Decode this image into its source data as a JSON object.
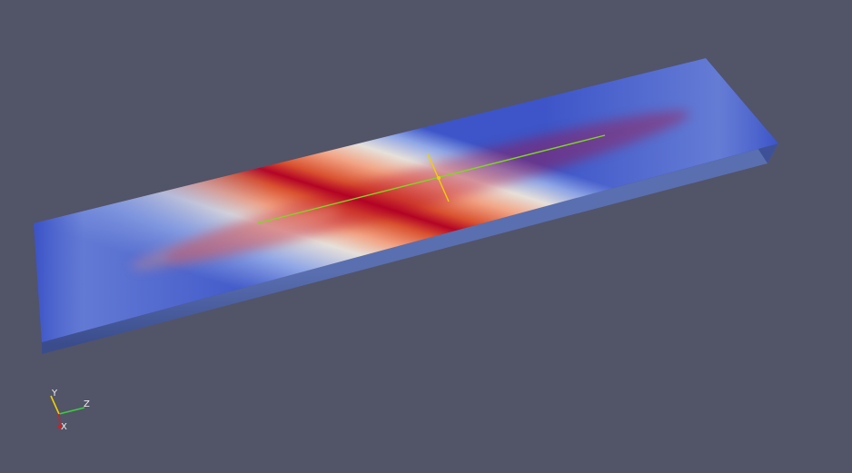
{
  "viewport": {
    "background_color": "#525468",
    "colormap": {
      "name": "Cool to Warm",
      "low_color": "#3b4cc0",
      "mid_color": "#dddddd",
      "high_color": "#b40426"
    }
  },
  "slab": {
    "top_colors": [
      "#3d55c8",
      "#8fa6e6",
      "#e6e0da",
      "#f2a485",
      "#d9512f",
      "#b40426"
    ],
    "front_face_color": "#4a5f9e",
    "end_face_color": "#3f5196"
  },
  "line_widget": {
    "color": "#7ed81f"
  },
  "cross_widget": {
    "color": "#f0d000"
  },
  "orientation_axes": {
    "labels": {
      "y": "Y",
      "z": "Z",
      "x": "X"
    },
    "colors": {
      "y": "#f0d000",
      "z": "#3ccf3c",
      "x": "#d02020"
    }
  }
}
